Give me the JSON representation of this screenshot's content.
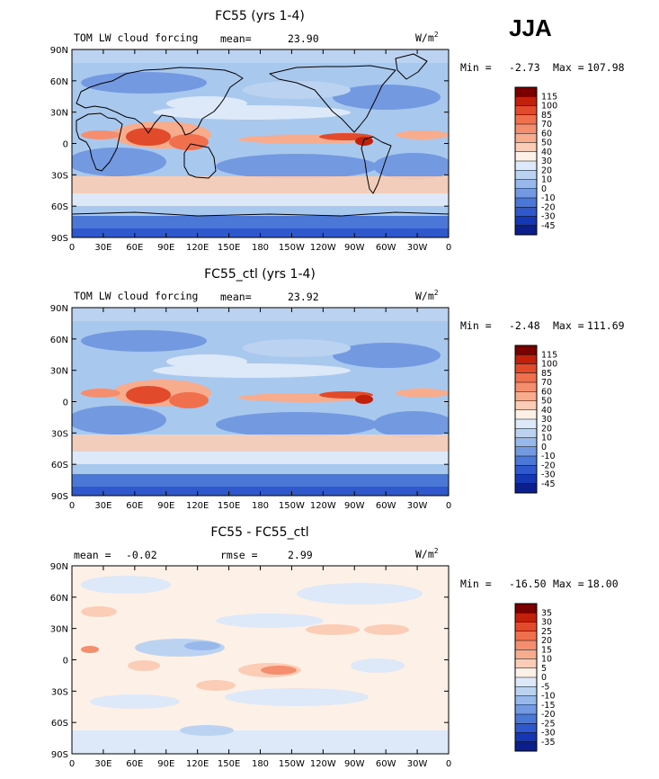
{
  "season": "JJA",
  "colors": {
    "map_base": "#a9c8ee",
    "land_outline": "#000000"
  },
  "chart_data": [
    {
      "type": "heatmap",
      "title": "FC55 (yrs 1-4)",
      "left_label": "TOM LW cloud forcing",
      "stat_label": "mean=",
      "stat_value": "23.90",
      "units": "W/m",
      "units_exp": "2",
      "min_label": "Min =",
      "min_value": "-2.73",
      "max_label": "Max =",
      "max_value": "107.98",
      "xlabels": [
        "0",
        "30E",
        "60E",
        "90E",
        "120E",
        "150E",
        "180",
        "150W",
        "120W",
        "90W",
        "60W",
        "30W",
        "0"
      ],
      "ylabels": [
        "90N",
        "60N",
        "30N",
        "0",
        "30S",
        "60S",
        "90S"
      ],
      "colorbar": {
        "labels": [
          "115",
          "100",
          "85",
          "70",
          "60",
          "50",
          "40",
          "30",
          "20",
          "10",
          "0",
          "-10",
          "-20",
          "-30",
          "-45"
        ],
        "colors": [
          "#7a0000",
          "#c0200c",
          "#e14a2a",
          "#f0704e",
          "#f48e6e",
          "#f8ac8e",
          "#fbcdb6",
          "#fdf0e6",
          "#dde9f8",
          "#bcd2f1",
          "#98b7ea",
          "#7399e0",
          "#4b78d7",
          "#2e58cc",
          "#1537b3",
          "#0a1f8c"
        ]
      }
    },
    {
      "type": "heatmap",
      "title": "FC55_ctl (yrs 1-4)",
      "left_label": "TOM LW cloud forcing",
      "stat_label": "mean=",
      "stat_value": "23.92",
      "units": "W/m",
      "units_exp": "2",
      "min_label": "Min =",
      "min_value": "-2.48",
      "max_label": "Max =",
      "max_value": "111.69",
      "xlabels": [
        "0",
        "30E",
        "60E",
        "90E",
        "120E",
        "150E",
        "180",
        "150W",
        "120W",
        "90W",
        "60W",
        "30W",
        "0"
      ],
      "ylabels": [
        "90N",
        "60N",
        "30N",
        "0",
        "30S",
        "60S",
        "90S"
      ],
      "colorbar": {
        "labels": [
          "115",
          "100",
          "85",
          "70",
          "60",
          "50",
          "40",
          "30",
          "20",
          "10",
          "0",
          "-10",
          "-20",
          "-30",
          "-45"
        ],
        "colors": [
          "#7a0000",
          "#c0200c",
          "#e14a2a",
          "#f0704e",
          "#f48e6e",
          "#f8ac8e",
          "#fbcdb6",
          "#fdf0e6",
          "#dde9f8",
          "#bcd2f1",
          "#98b7ea",
          "#7399e0",
          "#4b78d7",
          "#2e58cc",
          "#1537b3",
          "#0a1f8c"
        ]
      }
    },
    {
      "type": "heatmap",
      "title": "FC55 - FC55_ctl",
      "left_label": "mean =",
      "left_value": "-0.02",
      "stat_label": "rmse =",
      "stat_value": "2.99",
      "units": "W/m",
      "units_exp": "2",
      "min_label": "Min =",
      "min_value": "-16.50",
      "max_label": "Max =",
      "max_value": "18.00",
      "xlabels": [
        "0",
        "30E",
        "60E",
        "90E",
        "120E",
        "150E",
        "180",
        "150W",
        "120W",
        "90W",
        "60W",
        "30W",
        "0"
      ],
      "ylabels": [
        "90N",
        "60N",
        "30N",
        "0",
        "30S",
        "60S",
        "90S"
      ],
      "colorbar": {
        "labels": [
          "35",
          "30",
          "25",
          "20",
          "15",
          "10",
          "5",
          "0",
          "-5",
          "-10",
          "-15",
          "-20",
          "-25",
          "-30",
          "-35"
        ],
        "colors": [
          "#7a0000",
          "#c0200c",
          "#e14a2a",
          "#f0704e",
          "#f48e6e",
          "#f8ac8e",
          "#fbcdb6",
          "#fdf0e6",
          "#dde9f8",
          "#bcd2f1",
          "#98b7ea",
          "#7399e0",
          "#4b78d7",
          "#2e58cc",
          "#1537b3",
          "#0a1f8c"
        ]
      }
    }
  ]
}
